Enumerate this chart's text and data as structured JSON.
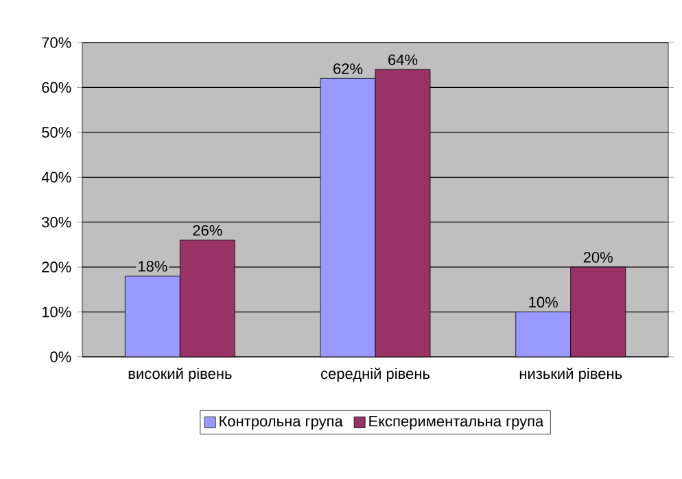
{
  "chart_data": {
    "type": "bar",
    "categories": [
      "високий рівень",
      "середній рівень",
      "низький рівень"
    ],
    "series": [
      {
        "name": "Контрольна група",
        "color": "#9999ff",
        "values": [
          18,
          62,
          10
        ],
        "value_labels": [
          "18%",
          "62%",
          "10%"
        ]
      },
      {
        "name": "Експериментальна група",
        "color": "#993366",
        "values": [
          26,
          64,
          20
        ],
        "value_labels": [
          "26%",
          "64%",
          "20%"
        ]
      }
    ],
    "ylim": [
      0,
      70
    ],
    "yticks": [
      {
        "value": 0,
        "label": "0%"
      },
      {
        "value": 10,
        "label": "10%"
      },
      {
        "value": 20,
        "label": "20%"
      },
      {
        "value": 30,
        "label": "30%"
      },
      {
        "value": 40,
        "label": "40%"
      },
      {
        "value": 50,
        "label": "50%"
      },
      {
        "value": 60,
        "label": "60%"
      },
      {
        "value": 70,
        "label": "70%"
      }
    ],
    "grid": "y",
    "legend": "bottom"
  }
}
